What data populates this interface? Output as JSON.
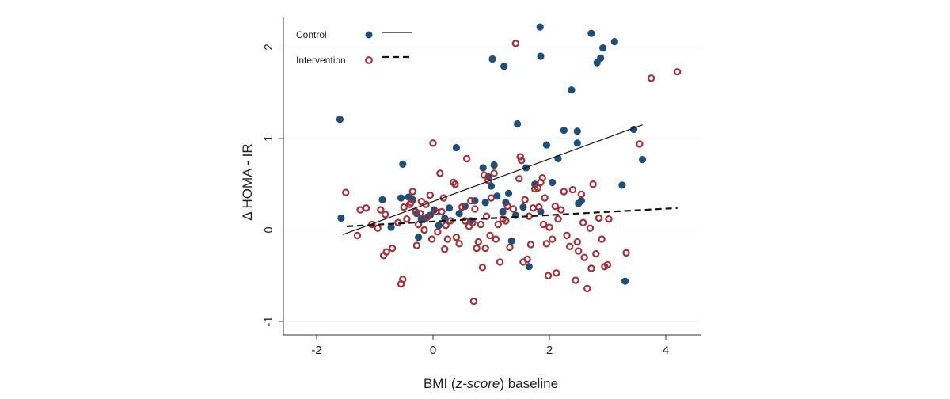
{
  "chart_data": {
    "type": "scatter",
    "title": "",
    "xlabel_parts": [
      "BMI (",
      "z-score",
      ") baseline"
    ],
    "ylabel": "Δ HOMA - IR",
    "xlim": [
      -2.5,
      4.6
    ],
    "ylim": [
      -1.1,
      2.3
    ],
    "xticks": [
      -2,
      0,
      2,
      4
    ],
    "yticks": [
      -1,
      0,
      1,
      2
    ],
    "grid": "horizontal",
    "legend_position": "top-left",
    "colors": {
      "control": "#1f4e79",
      "intervention": "#a0333a"
    },
    "series": [
      {
        "name": "Control",
        "marker": "filled-circle",
        "fit_line": {
          "style": "solid",
          "x": [
            -1.55,
            3.6
          ],
          "y": [
            -0.05,
            1.15
          ]
        },
        "points": [
          [
            -1.6,
            1.21
          ],
          [
            -1.58,
            0.13
          ],
          [
            -0.87,
            0.33
          ],
          [
            -0.72,
            0.03
          ],
          [
            -0.52,
            0.72
          ],
          [
            -0.55,
            0.35
          ],
          [
            -0.42,
            0.36
          ],
          [
            -0.35,
            0.33
          ],
          [
            -0.28,
            0.18
          ],
          [
            -0.25,
            -0.08
          ],
          [
            -0.2,
            0.12
          ],
          [
            -0.12,
            0.13
          ],
          [
            -0.05,
            0.16
          ],
          [
            0.02,
            0.22
          ],
          [
            0.1,
            0.05
          ],
          [
            0.2,
            0.13
          ],
          [
            0.28,
            0.24
          ],
          [
            0.4,
            0.9
          ],
          [
            0.45,
            0.18
          ],
          [
            0.55,
            0.26
          ],
          [
            0.65,
            0.1
          ],
          [
            0.72,
            0.32
          ],
          [
            0.86,
            0.68
          ],
          [
            0.9,
            0.3
          ],
          [
            0.95,
            0.58
          ],
          [
            1.0,
            0.48
          ],
          [
            1.05,
            0.71
          ],
          [
            1.1,
            0.37
          ],
          [
            1.2,
            0.2
          ],
          [
            1.25,
            0.3
          ],
          [
            1.3,
            0.4
          ],
          [
            1.35,
            -0.12
          ],
          [
            1.42,
            0.16
          ],
          [
            1.45,
            1.16
          ],
          [
            1.55,
            0.25
          ],
          [
            1.6,
            0.68
          ],
          [
            1.65,
            -0.4
          ],
          [
            1.75,
            0.5
          ],
          [
            1.85,
            0.2
          ],
          [
            1.95,
            0.93
          ],
          [
            2.05,
            0.52
          ],
          [
            2.15,
            0.78
          ],
          [
            2.25,
            1.09
          ],
          [
            2.38,
            1.53
          ],
          [
            2.48,
            1.08
          ],
          [
            2.48,
            0.95
          ],
          [
            2.5,
            0.29
          ],
          [
            2.55,
            0.32
          ],
          [
            3.25,
            0.49
          ],
          [
            3.3,
            -0.56
          ],
          [
            3.45,
            1.1
          ],
          [
            3.6,
            0.77
          ],
          [
            1.02,
            1.87
          ],
          [
            1.22,
            1.79
          ],
          [
            1.84,
            2.22
          ],
          [
            1.85,
            1.9
          ],
          [
            2.72,
            2.15
          ],
          [
            2.82,
            1.83
          ],
          [
            2.88,
            1.88
          ],
          [
            2.92,
            1.99
          ],
          [
            3.12,
            2.06
          ]
        ]
      },
      {
        "name": "Intervention",
        "marker": "hollow-circle",
        "fit_line": {
          "style": "dashed",
          "x": [
            -1.48,
            4.2
          ],
          "y": [
            0.04,
            0.24
          ]
        },
        "points": [
          [
            -1.5,
            0.41
          ],
          [
            -1.3,
            -0.06
          ],
          [
            -1.25,
            0.22
          ],
          [
            -1.15,
            0.24
          ],
          [
            -1.05,
            0.06
          ],
          [
            -0.95,
            0.02
          ],
          [
            -0.9,
            0.22
          ],
          [
            -0.85,
            -0.28
          ],
          [
            -0.82,
            0.17
          ],
          [
            -0.8,
            -0.24
          ],
          [
            -0.7,
            -0.2
          ],
          [
            -0.6,
            0.08
          ],
          [
            -0.55,
            -0.59
          ],
          [
            -0.52,
            -0.54
          ],
          [
            -0.5,
            0.25
          ],
          [
            -0.45,
            0.12
          ],
          [
            -0.4,
            0.28
          ],
          [
            -0.38,
            0.3
          ],
          [
            -0.35,
            0.42
          ],
          [
            -0.3,
            0.2
          ],
          [
            -0.28,
            -0.17
          ],
          [
            -0.25,
            0.06
          ],
          [
            -0.22,
            0.18
          ],
          [
            -0.2,
            0.31
          ],
          [
            -0.15,
            0.0
          ],
          [
            -0.12,
            0.28
          ],
          [
            -0.1,
            0.14
          ],
          [
            -0.05,
            0.38
          ],
          [
            -0.02,
            -0.1
          ],
          [
            0.0,
            0.95
          ],
          [
            0.05,
            0.2
          ],
          [
            0.08,
            -0.02
          ],
          [
            0.12,
            0.62
          ],
          [
            0.15,
            0.2
          ],
          [
            0.18,
            0.35
          ],
          [
            0.2,
            -0.21
          ],
          [
            0.22,
            0.05
          ],
          [
            0.25,
            -0.1
          ],
          [
            0.3,
            0.1
          ],
          [
            0.35,
            0.52
          ],
          [
            0.38,
            0.5
          ],
          [
            0.4,
            -0.08
          ],
          [
            0.45,
            -0.15
          ],
          [
            0.5,
            0.25
          ],
          [
            0.55,
            0.1
          ],
          [
            0.58,
            0.78
          ],
          [
            0.62,
            0.04
          ],
          [
            0.65,
            0.32
          ],
          [
            0.68,
            0.08
          ],
          [
            0.7,
            -0.78
          ],
          [
            0.72,
            0.23
          ],
          [
            0.75,
            -0.2
          ],
          [
            0.78,
            -0.13
          ],
          [
            0.82,
            0.06
          ],
          [
            0.85,
            -0.41
          ],
          [
            0.88,
            0.6
          ],
          [
            0.9,
            -0.2
          ],
          [
            0.92,
            0.15
          ],
          [
            0.95,
            0.54
          ],
          [
            0.98,
            -0.06
          ],
          [
            1.0,
            0.35
          ],
          [
            1.05,
            0.62
          ],
          [
            1.08,
            -0.1
          ],
          [
            1.12,
            0.06
          ],
          [
            1.15,
            -0.35
          ],
          [
            1.2,
            0.12
          ],
          [
            1.25,
            0.1
          ],
          [
            1.28,
            0.26
          ],
          [
            1.32,
            -0.19
          ],
          [
            1.38,
            0.23
          ],
          [
            1.42,
            2.04
          ],
          [
            1.48,
            0.56
          ],
          [
            1.5,
            0.8
          ],
          [
            1.52,
            0.76
          ],
          [
            1.55,
            -0.35
          ],
          [
            1.58,
            0.33
          ],
          [
            1.62,
            -0.32
          ],
          [
            1.65,
            0.15
          ],
          [
            1.68,
            -0.16
          ],
          [
            1.72,
            0.24
          ],
          [
            1.75,
            0.45
          ],
          [
            1.8,
            0.46
          ],
          [
            1.82,
            0.25
          ],
          [
            1.85,
            0.52
          ],
          [
            1.88,
            0.57
          ],
          [
            1.9,
            0.06
          ],
          [
            1.92,
            0.35
          ],
          [
            1.95,
            -0.15
          ],
          [
            1.98,
            -0.5
          ],
          [
            2.0,
            0.03
          ],
          [
            2.05,
            -0.1
          ],
          [
            2.1,
            0.26
          ],
          [
            2.12,
            -0.47
          ],
          [
            2.15,
            0.12
          ],
          [
            2.2,
            0.22
          ],
          [
            2.25,
            0.42
          ],
          [
            2.3,
            -0.06
          ],
          [
            2.35,
            -0.18
          ],
          [
            2.4,
            0.44
          ],
          [
            2.45,
            -0.55
          ],
          [
            2.48,
            -0.13
          ],
          [
            2.5,
            -0.23
          ],
          [
            2.55,
            0.39
          ],
          [
            2.58,
            0.08
          ],
          [
            2.6,
            -0.3
          ],
          [
            2.65,
            -0.64
          ],
          [
            2.7,
            0.02
          ],
          [
            2.72,
            -0.42
          ],
          [
            2.75,
            0.5
          ],
          [
            2.8,
            -0.26
          ],
          [
            2.85,
            0.13
          ],
          [
            2.9,
            -0.1
          ],
          [
            2.95,
            -0.4
          ],
          [
            3.0,
            -0.38
          ],
          [
            3.02,
            0.12
          ],
          [
            3.32,
            -0.25
          ],
          [
            3.55,
            0.94
          ],
          [
            3.75,
            1.66
          ],
          [
            4.2,
            1.73
          ]
        ]
      }
    ]
  }
}
